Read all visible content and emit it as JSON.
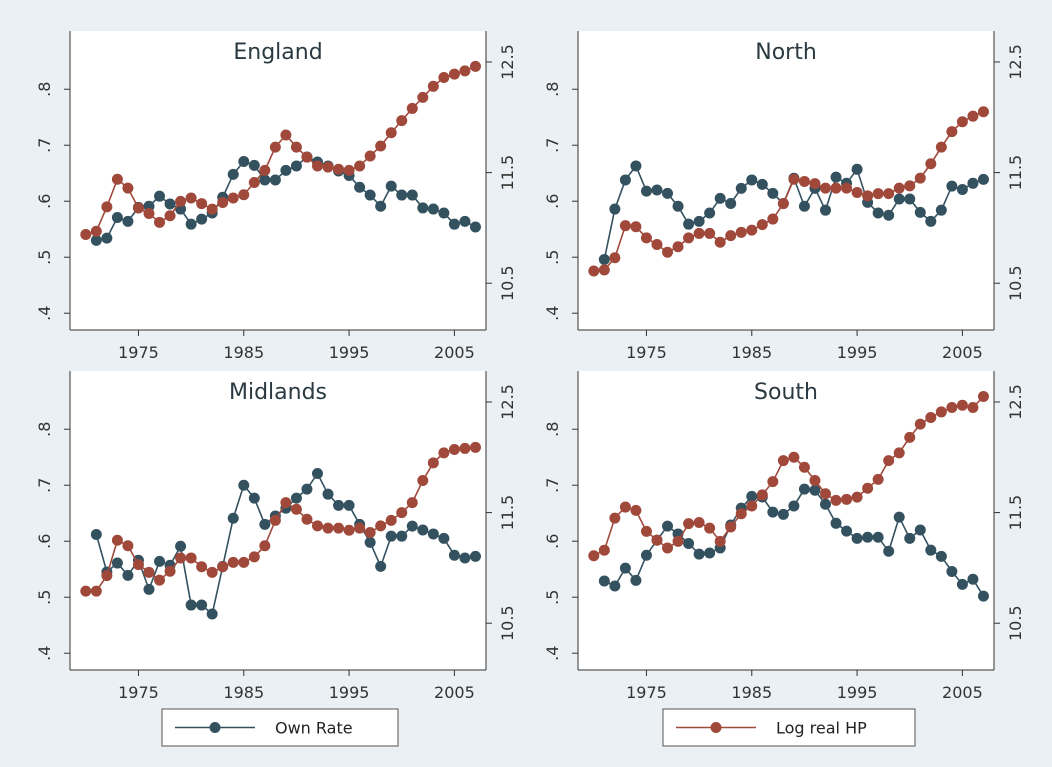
{
  "chart_data": [
    {
      "type": "line",
      "title": "England",
      "x": [
        1970,
        1971,
        1972,
        1973,
        1974,
        1975,
        1976,
        1977,
        1978,
        1979,
        1980,
        1981,
        1982,
        1983,
        1984,
        1985,
        1986,
        1987,
        1988,
        1989,
        1990,
        1991,
        1992,
        1993,
        1994,
        1995,
        1996,
        1997,
        1998,
        1999,
        2000,
        2001,
        2002,
        2003,
        2004,
        2005,
        2006,
        2007
      ],
      "xlim": [
        1968.5,
        2008
      ],
      "xticks": [
        1975,
        1985,
        1995,
        2005
      ],
      "ylim": [
        0.37,
        0.904
      ],
      "yticks": [
        {
          "value": 0.4,
          "label": ".4"
        },
        {
          "value": 0.5,
          "label": ".5"
        },
        {
          "value": 0.6,
          "label": ".6"
        },
        {
          "value": 0.7,
          "label": ".7"
        },
        {
          "value": 0.8,
          "label": ".8"
        }
      ],
      "y2lim": [
        10.077,
        12.78
      ],
      "y2ticks": [
        10.5,
        11.5,
        12.5
      ],
      "series": [
        {
          "name": "Own Rate",
          "color": "#34515f",
          "values": [
            null,
            0.53,
            0.534,
            0.571,
            0.564,
            0.589,
            0.591,
            0.609,
            0.595,
            0.586,
            0.559,
            0.568,
            0.579,
            0.607,
            0.648,
            0.671,
            0.664,
            0.638,
            0.638,
            0.655,
            0.663,
            0.679,
            0.67,
            0.663,
            0.654,
            0.646,
            0.625,
            0.611,
            0.591,
            0.627,
            0.611,
            0.611,
            0.588,
            0.586,
            0.579,
            0.559,
            0.564,
            0.554
          ]
        },
        {
          "name": "Log real HP",
          "color": "#a0493b",
          "axis": "y2",
          "values": [
            10.94,
            10.97,
            11.19,
            11.44,
            11.36,
            11.18,
            11.13,
            11.05,
            11.11,
            11.24,
            11.27,
            11.22,
            11.17,
            11.23,
            11.27,
            11.3,
            11.41,
            11.52,
            11.73,
            11.84,
            11.73,
            11.64,
            11.56,
            11.55,
            11.53,
            11.52,
            11.56,
            11.65,
            11.74,
            11.86,
            11.97,
            12.08,
            12.18,
            12.28,
            12.36,
            12.39,
            12.42,
            12.46
          ]
        }
      ]
    },
    {
      "type": "line",
      "title": "North",
      "x": [
        1970,
        1971,
        1972,
        1973,
        1974,
        1975,
        1976,
        1977,
        1978,
        1979,
        1980,
        1981,
        1982,
        1983,
        1984,
        1985,
        1986,
        1987,
        1988,
        1989,
        1990,
        1991,
        1992,
        1993,
        1994,
        1995,
        1996,
        1997,
        1998,
        1999,
        2000,
        2001,
        2002,
        2003,
        2004,
        2005,
        2006,
        2007
      ],
      "xlim": [
        1968.5,
        2008
      ],
      "xticks": [
        1975,
        1985,
        1995,
        2005
      ],
      "ylim": [
        0.37,
        0.904
      ],
      "yticks": [
        {
          "value": 0.4,
          "label": ".4"
        },
        {
          "value": 0.5,
          "label": ".5"
        },
        {
          "value": 0.6,
          "label": ".6"
        },
        {
          "value": 0.7,
          "label": ".7"
        },
        {
          "value": 0.8,
          "label": ".8"
        }
      ],
      "y2lim": [
        10.077,
        12.78
      ],
      "y2ticks": [
        10.5,
        11.5,
        12.5
      ],
      "series": [
        {
          "color": "#34515f",
          "values": [
            null,
            0.496,
            0.586,
            0.638,
            0.663,
            0.618,
            0.62,
            0.614,
            0.591,
            0.559,
            0.564,
            0.579,
            0.605,
            0.596,
            0.623,
            0.638,
            0.63,
            0.614,
            0.596,
            0.641,
            0.591,
            0.623,
            0.584,
            0.643,
            0.632,
            0.657,
            0.598,
            0.579,
            0.575,
            0.604,
            0.604,
            0.58,
            0.564,
            0.584,
            0.627,
            0.621,
            0.632,
            0.639
          ]
        },
        {
          "color": "#a0493b",
          "axis": "y2",
          "values": [
            10.61,
            10.62,
            10.73,
            11.02,
            11.01,
            10.91,
            10.85,
            10.78,
            10.83,
            10.91,
            10.95,
            10.95,
            10.87,
            10.93,
            10.96,
            10.98,
            11.03,
            11.08,
            11.22,
            11.44,
            11.42,
            11.4,
            11.36,
            11.36,
            11.36,
            11.32,
            11.29,
            11.31,
            11.31,
            11.36,
            11.38,
            11.45,
            11.58,
            11.73,
            11.87,
            11.96,
            12.01,
            12.05
          ]
        }
      ]
    },
    {
      "type": "line",
      "title": "Midlands",
      "x": [
        1970,
        1971,
        1972,
        1973,
        1974,
        1975,
        1976,
        1977,
        1978,
        1979,
        1980,
        1981,
        1982,
        1983,
        1984,
        1985,
        1986,
        1987,
        1988,
        1989,
        1990,
        1991,
        1992,
        1993,
        1994,
        1995,
        1996,
        1997,
        1998,
        1999,
        2000,
        2001,
        2002,
        2003,
        2004,
        2005,
        2006,
        2007
      ],
      "xlim": [
        1968.5,
        2008
      ],
      "xticks": [
        1975,
        1985,
        1995,
        2005
      ],
      "ylim": [
        0.37,
        0.904
      ],
      "yticks": [
        {
          "value": 0.4,
          "label": ".4"
        },
        {
          "value": 0.5,
          "label": ".5"
        },
        {
          "value": 0.6,
          "label": ".6"
        },
        {
          "value": 0.7,
          "label": ".7"
        },
        {
          "value": 0.8,
          "label": ".8"
        }
      ],
      "y2lim": [
        10.077,
        12.78
      ],
      "y2ticks": [
        10.5,
        11.5,
        12.5
      ],
      "series": [
        {
          "color": "#34515f",
          "values": [
            null,
            0.612,
            0.545,
            0.561,
            0.539,
            0.566,
            0.514,
            0.564,
            0.557,
            0.591,
            0.486,
            0.486,
            0.47,
            0.555,
            0.641,
            0.7,
            0.677,
            0.63,
            0.645,
            0.659,
            0.677,
            0.693,
            0.721,
            0.684,
            0.664,
            0.664,
            0.63,
            0.598,
            0.555,
            0.609,
            0.609,
            0.627,
            0.62,
            0.613,
            0.605,
            0.575,
            0.57,
            0.573
          ]
        },
        {
          "color": "#a0493b",
          "axis": "y2",
          "values": [
            10.79,
            10.79,
            10.93,
            11.25,
            11.2,
            11.03,
            10.96,
            10.89,
            10.97,
            11.09,
            11.09,
            11.01,
            10.96,
            11.01,
            11.05,
            11.05,
            11.1,
            11.2,
            11.43,
            11.59,
            11.53,
            11.44,
            11.38,
            11.36,
            11.36,
            11.34,
            11.36,
            11.32,
            11.38,
            11.43,
            11.5,
            11.59,
            11.79,
            11.95,
            12.04,
            12.07,
            12.08,
            12.09
          ]
        }
      ]
    },
    {
      "type": "line",
      "title": "South",
      "x": [
        1970,
        1971,
        1972,
        1973,
        1974,
        1975,
        1976,
        1977,
        1978,
        1979,
        1980,
        1981,
        1982,
        1983,
        1984,
        1985,
        1986,
        1987,
        1988,
        1989,
        1990,
        1991,
        1992,
        1993,
        1994,
        1995,
        1996,
        1997,
        1998,
        1999,
        2000,
        2001,
        2002,
        2003,
        2004,
        2005,
        2006,
        2007
      ],
      "xlim": [
        1968.5,
        2008
      ],
      "xticks": [
        1975,
        1985,
        1995,
        2005
      ],
      "ylim": [
        0.37,
        0.904
      ],
      "yticks": [
        {
          "value": 0.4,
          "label": ".4"
        },
        {
          "value": 0.5,
          "label": ".5"
        },
        {
          "value": 0.6,
          "label": ".6"
        },
        {
          "value": 0.7,
          "label": ".7"
        },
        {
          "value": 0.8,
          "label": ".8"
        }
      ],
      "y2lim": [
        10.077,
        12.78
      ],
      "y2ticks": [
        10.5,
        11.5,
        12.5
      ],
      "series": [
        {
          "color": "#34515f",
          "values": [
            null,
            0.529,
            0.52,
            0.552,
            0.53,
            0.575,
            0.602,
            0.627,
            0.613,
            0.596,
            0.577,
            0.579,
            0.588,
            0.629,
            0.659,
            0.68,
            0.679,
            0.652,
            0.648,
            0.663,
            0.693,
            0.691,
            0.666,
            0.632,
            0.618,
            0.605,
            0.607,
            0.607,
            0.582,
            0.643,
            0.605,
            0.62,
            0.584,
            0.573,
            0.546,
            0.523,
            0.532,
            0.502
          ]
        },
        {
          "color": "#a0493b",
          "axis": "y2",
          "values": [
            11.11,
            11.16,
            11.45,
            11.55,
            11.52,
            11.33,
            11.25,
            11.18,
            11.24,
            11.4,
            11.41,
            11.36,
            11.24,
            11.37,
            11.49,
            11.56,
            11.66,
            11.78,
            11.97,
            12.0,
            11.91,
            11.79,
            11.67,
            11.61,
            11.62,
            11.64,
            11.72,
            11.8,
            11.97,
            12.04,
            12.18,
            12.3,
            12.36,
            12.41,
            12.45,
            12.47,
            12.45,
            12.55
          ]
        }
      ]
    }
  ]
}
